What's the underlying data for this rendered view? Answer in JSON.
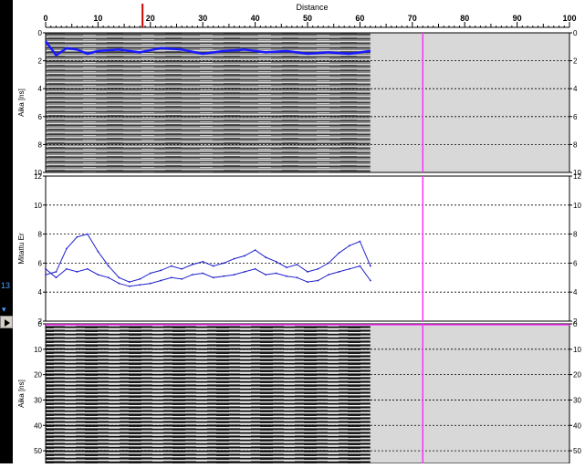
{
  "left_panel": {
    "number": "13",
    "caret": "▾"
  },
  "top_axis": {
    "title": "Distance",
    "ticks": [
      "0",
      "10",
      "20",
      "30",
      "40",
      "50",
      "60",
      "70",
      "80",
      "90",
      "100"
    ],
    "range": [
      0,
      100
    ],
    "cursor_marker_distance": 18.5,
    "cursor_line_distance": 72
  },
  "data_extent_distance": 62,
  "colors": {
    "cursor_line": "#ff33ff",
    "marker": "#cc0000",
    "trace": "#2020cc",
    "empty_area": "#d8d8d8"
  },
  "panels": {
    "top_radargram": {
      "ylabel": "Aika [ns]",
      "yticks": [
        "0",
        "2",
        "4",
        "6",
        "8",
        "10"
      ],
      "ylim": [
        0,
        10
      ],
      "grid_values": [
        2,
        4,
        6,
        8
      ]
    },
    "middle_plot": {
      "ylabel": "Mitattu Er",
      "yticks": [
        "2",
        "4",
        "6",
        "8",
        "10",
        "12"
      ],
      "ylim": [
        2,
        12
      ],
      "grid_values": [
        4,
        6,
        8,
        10
      ]
    },
    "bottom_radargram": {
      "ylabel": "Aika [ns]",
      "yticks": [
        "0",
        "10",
        "20",
        "30",
        "40",
        "50"
      ],
      "ylim": [
        0,
        55
      ],
      "grid_values": [
        10,
        20,
        30,
        40,
        50
      ]
    }
  },
  "chart_data": [
    {
      "type": "line",
      "title": "",
      "xlabel": "Distance",
      "ylabel": "Mitattu Er",
      "xlim": [
        0,
        100
      ],
      "ylim": [
        2,
        12
      ],
      "series": [
        {
          "x": [
            0,
            2,
            4,
            6,
            8,
            10,
            12,
            14,
            16,
            18,
            20,
            22,
            24,
            26,
            28,
            30,
            32,
            34,
            36,
            38,
            40,
            42,
            44,
            46,
            48,
            50,
            52,
            54,
            56,
            58,
            60,
            62
          ],
          "values": [
            5.2,
            5.4,
            7.0,
            7.8,
            8.0,
            6.8,
            5.8,
            5.0,
            4.7,
            4.9,
            5.3,
            5.5,
            5.8,
            5.6,
            5.9,
            6.1,
            5.8,
            6.0,
            6.3,
            6.5,
            6.9,
            6.4,
            6.1,
            5.7,
            5.9,
            5.4,
            5.6,
            6.0,
            6.7,
            7.2,
            7.5,
            5.8
          ]
        },
        {
          "x": [
            0,
            2,
            4,
            6,
            8,
            10,
            12,
            14,
            16,
            18,
            20,
            22,
            24,
            26,
            28,
            30,
            32,
            34,
            36,
            38,
            40,
            42,
            44,
            46,
            48,
            50,
            52,
            54,
            56,
            58,
            60,
            62
          ],
          "values": [
            5.6,
            5.0,
            5.6,
            5.4,
            5.6,
            5.2,
            5.0,
            4.6,
            4.4,
            4.5,
            4.6,
            4.8,
            5.0,
            4.9,
            5.2,
            5.3,
            5.0,
            5.1,
            5.2,
            5.4,
            5.6,
            5.2,
            5.3,
            5.1,
            5.0,
            4.7,
            4.8,
            5.2,
            5.4,
            5.6,
            5.8,
            4.8
          ]
        }
      ]
    },
    {
      "type": "line",
      "title": "",
      "xlabel": "Distance",
      "ylabel": "Aika [ns]",
      "xlim": [
        0,
        100
      ],
      "ylim": [
        0,
        10
      ],
      "series": [
        {
          "x": [
            0,
            2,
            4,
            6,
            8,
            10,
            14,
            18,
            22,
            26,
            30,
            34,
            38,
            42,
            46,
            50,
            54,
            58,
            62
          ],
          "values": [
            0.6,
            1.6,
            1.1,
            1.2,
            1.5,
            1.3,
            1.2,
            1.4,
            1.1,
            1.2,
            1.5,
            1.3,
            1.2,
            1.4,
            1.3,
            1.5,
            1.4,
            1.5,
            1.3
          ]
        }
      ]
    }
  ]
}
